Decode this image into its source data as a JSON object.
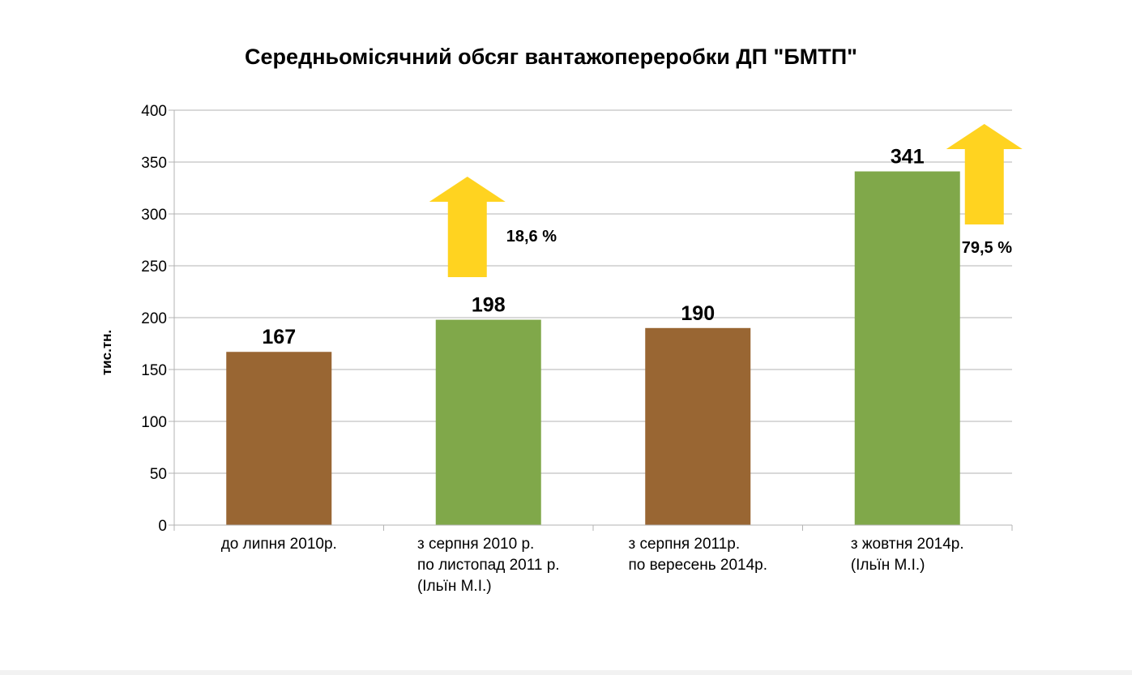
{
  "chart_data": {
    "type": "bar",
    "title": "Середньомісячний обсяг вантажопереробки ДП \"БМТП\"",
    "ylabel": "тис.тн.",
    "xlabel": "",
    "ylim": [
      0,
      400
    ],
    "yticks": [
      0,
      50,
      100,
      150,
      200,
      250,
      300,
      350,
      400
    ],
    "grid": true,
    "categories": [
      [
        "до липня 2010р."
      ],
      [
        "з серпня 2010 р.",
        "по листопад 2011 р.",
        "(Ільїн М.І.)"
      ],
      [
        "з серпня 2011р.",
        "по вересень 2014р."
      ],
      [
        "з жовтня 2014р.",
        "(Ільїн М.І.)"
      ]
    ],
    "values": [
      167,
      198,
      190,
      341
    ],
    "value_labels": [
      "167",
      "198",
      "190",
      "341"
    ],
    "bar_colors": [
      "#996633",
      "#80a84a",
      "#996633",
      "#80a84a"
    ],
    "annotations": [
      {
        "text": "18,6 %",
        "bar_index": 1,
        "icon": "up-arrow-icon",
        "color": "#ffd320"
      },
      {
        "text": "79,5 %",
        "bar_index": 3,
        "icon": "up-arrow-icon",
        "color": "#ffd320"
      }
    ]
  }
}
